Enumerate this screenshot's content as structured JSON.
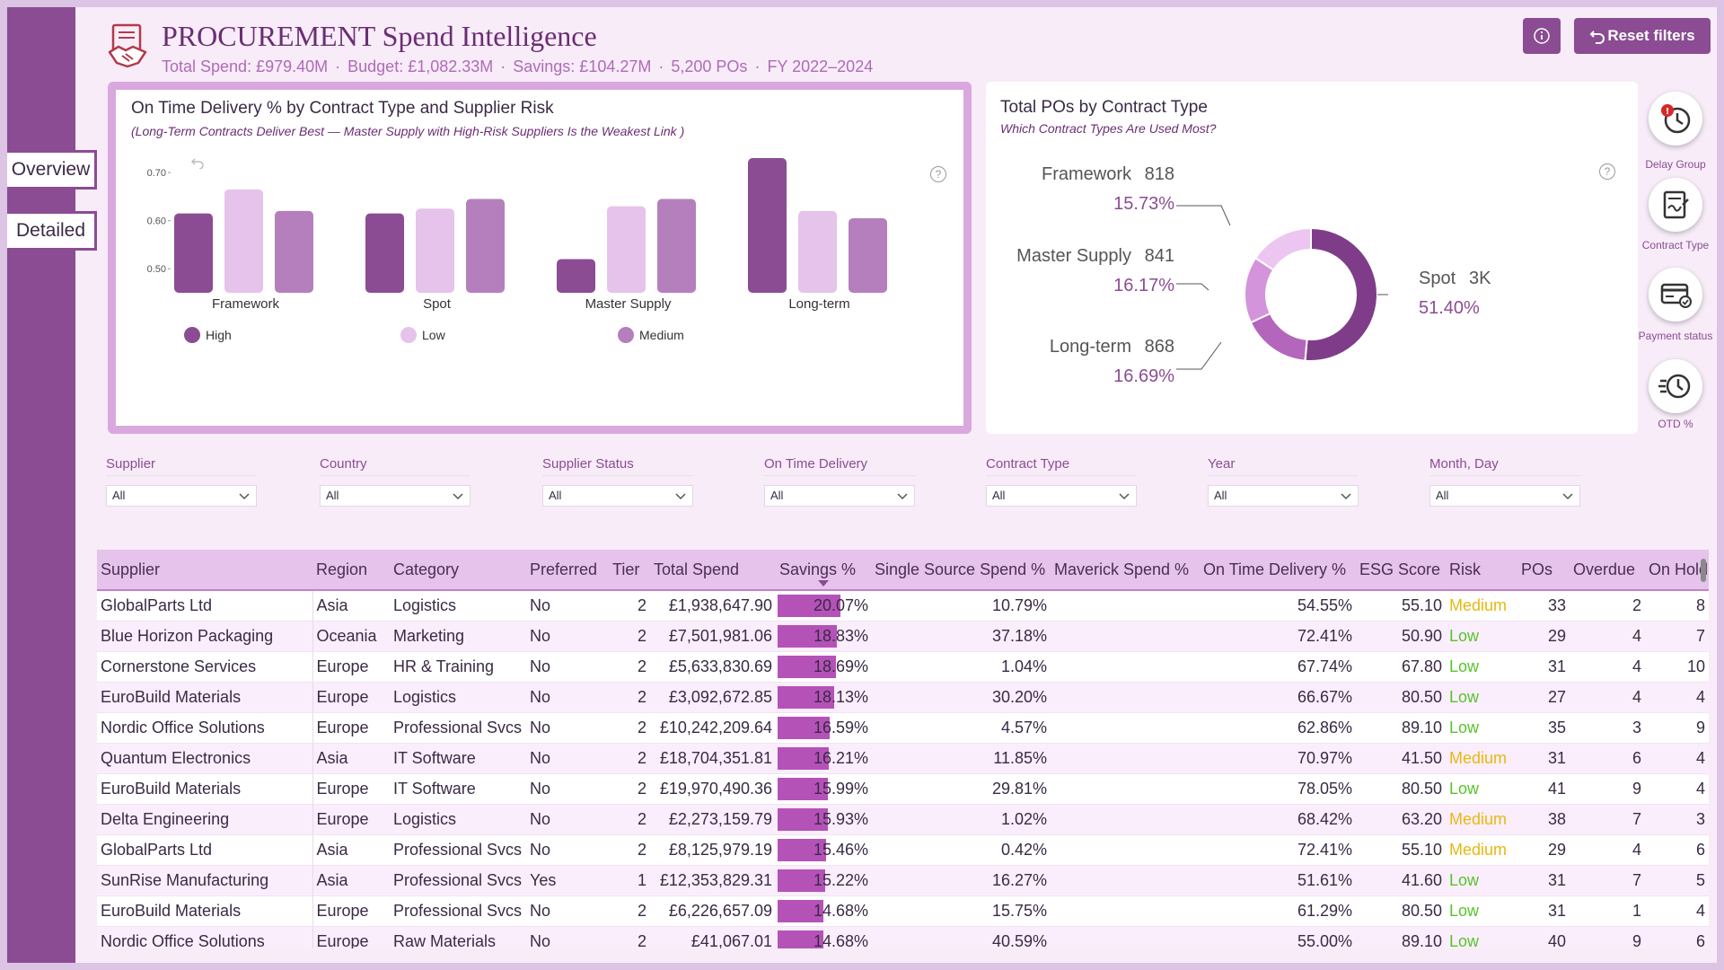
{
  "header": {
    "title": "PROCUREMENT Spend Intelligence",
    "total_spend": "Total Spend: £979.40M",
    "budget": "Budget: £1,082.33M",
    "savings": "Savings: £104.27M",
    "pos": "5,200 POs",
    "fy": "FY 2022–2024",
    "separator": "·",
    "reset_label": "Reset filters"
  },
  "nav": {
    "overview": "Overview",
    "detailed": "Detailed"
  },
  "otd_chart": {
    "title": "On Time Delivery % by Contract Type and Supplier Risk",
    "subtitle": "(Long-Term Contracts Deliver Best — Master Supply with High-Risk Suppliers Is the Weakest Link )",
    "help": "?"
  },
  "donut_chart": {
    "title": "Total POs by Contract Type",
    "subtitle": "Which Contract Types Are Used Most?",
    "help": "?",
    "labels": [
      {
        "name": "Framework",
        "count": "818",
        "pct": "15.73%"
      },
      {
        "name": "Master Supply",
        "count": "841",
        "pct": "16.17%"
      },
      {
        "name": "Long-term",
        "count": "868",
        "pct": "16.69%"
      },
      {
        "name": "Spot",
        "count": "3K",
        "pct": "51.40%"
      }
    ]
  },
  "chart_data": [
    {
      "type": "bar",
      "title": "On Time Delivery % by Contract Type and Supplier Risk",
      "categories": [
        "Framework",
        "Spot",
        "Master Supply",
        "Long-term"
      ],
      "yticks": [
        "0.70",
        "0.60",
        "0.50"
      ],
      "ylim": [
        0.45,
        0.73
      ],
      "legend_position": "bottom",
      "series": [
        {
          "name": "High",
          "color": "#8b4c93",
          "values": [
            0.615,
            0.615,
            0.52,
            0.73
          ]
        },
        {
          "name": "Low",
          "color": "#e6c3eb",
          "values": [
            0.665,
            0.625,
            0.63,
            0.62
          ]
        },
        {
          "name": "Medium",
          "color": "#b57fbd",
          "values": [
            0.62,
            0.645,
            0.645,
            0.605
          ]
        }
      ]
    },
    {
      "type": "pie",
      "title": "Total POs by Contract Type",
      "categories": [
        "Spot",
        "Long-term",
        "Master Supply",
        "Framework"
      ],
      "values": [
        51.4,
        16.69,
        16.17,
        15.73
      ],
      "colors": [
        "#7f3d89",
        "#b466bd",
        "#d394db",
        "#ecc5f0"
      ]
    }
  ],
  "side_icons": [
    {
      "label": "Delay Group",
      "icon": "clock-alert-icon"
    },
    {
      "label": "Contract Type",
      "icon": "contract-icon"
    },
    {
      "label": "Payment status",
      "icon": "payment-card-icon"
    },
    {
      "label": "OTD %",
      "icon": "history-clock-icon"
    }
  ],
  "slicers": [
    {
      "label": "Supplier",
      "value": "All"
    },
    {
      "label": "Country",
      "value": "All"
    },
    {
      "label": "Supplier Status",
      "value": "All"
    },
    {
      "label": "On Time Delivery",
      "value": "All"
    },
    {
      "label": "Contract Type",
      "value": "All"
    },
    {
      "label": "Year",
      "value": "All"
    },
    {
      "label": "Month, Day",
      "value": "All"
    }
  ],
  "table": {
    "columns": [
      "Supplier",
      "Region",
      "Category",
      "Preferred",
      "Tier",
      "Total Spend",
      "Savings %",
      "Single Source Spend %",
      "Maverick Spend %",
      "On Time Delivery %",
      "ESG Score",
      "Risk",
      "POs",
      "Overdue",
      "On Hold"
    ],
    "rows": [
      {
        "supplier": "GlobalParts Ltd",
        "region": "Asia",
        "category": "Logistics",
        "preferred": "No",
        "tier": "2",
        "spend": "£1,938,647.90",
        "savings": "20.07%",
        "savings_value": 20.07,
        "single": "10.79%",
        "maverick": "",
        "otd": "54.55%",
        "esg": "55.10",
        "risk": "Medium",
        "pos": "33",
        "overdue": "2",
        "hold": "8"
      },
      {
        "supplier": "Blue Horizon Packaging",
        "region": "Oceania",
        "category": "Marketing",
        "preferred": "No",
        "tier": "2",
        "spend": "£7,501,981.06",
        "savings": "18.83%",
        "savings_value": 18.83,
        "single": "37.18%",
        "maverick": "",
        "otd": "72.41%",
        "esg": "50.90",
        "risk": "Low",
        "pos": "29",
        "overdue": "4",
        "hold": "7"
      },
      {
        "supplier": "Cornerstone Services",
        "region": "Europe",
        "category": "HR & Training",
        "preferred": "No",
        "tier": "2",
        "spend": "£5,633,830.69",
        "savings": "18.69%",
        "savings_value": 18.69,
        "single": "1.04%",
        "maverick": "",
        "otd": "67.74%",
        "esg": "67.80",
        "risk": "Low",
        "pos": "31",
        "overdue": "4",
        "hold": "10"
      },
      {
        "supplier": "EuroBuild Materials",
        "region": "Europe",
        "category": "Logistics",
        "preferred": "No",
        "tier": "2",
        "spend": "£3,092,672.85",
        "savings": "18.13%",
        "savings_value": 18.13,
        "single": "30.20%",
        "maverick": "",
        "otd": "66.67%",
        "esg": "80.50",
        "risk": "Low",
        "pos": "27",
        "overdue": "4",
        "hold": "4"
      },
      {
        "supplier": "Nordic Office Solutions",
        "region": "Europe",
        "category": "Professional Svcs",
        "preferred": "No",
        "tier": "2",
        "spend": "£10,242,209.64",
        "savings": "16.59%",
        "savings_value": 16.59,
        "single": "4.57%",
        "maverick": "",
        "otd": "62.86%",
        "esg": "89.10",
        "risk": "Low",
        "pos": "35",
        "overdue": "3",
        "hold": "9"
      },
      {
        "supplier": "Quantum Electronics",
        "region": "Asia",
        "category": "IT Software",
        "preferred": "No",
        "tier": "2",
        "spend": "£18,704,351.81",
        "savings": "16.21%",
        "savings_value": 16.21,
        "single": "11.85%",
        "maverick": "",
        "otd": "70.97%",
        "esg": "41.50",
        "risk": "Medium",
        "pos": "31",
        "overdue": "6",
        "hold": "4"
      },
      {
        "supplier": "EuroBuild Materials",
        "region": "Europe",
        "category": "IT Software",
        "preferred": "No",
        "tier": "2",
        "spend": "£19,970,490.36",
        "savings": "15.99%",
        "savings_value": 15.99,
        "single": "29.81%",
        "maverick": "",
        "otd": "78.05%",
        "esg": "80.50",
        "risk": "Low",
        "pos": "41",
        "overdue": "9",
        "hold": "4"
      },
      {
        "supplier": "Delta Engineering",
        "region": "Europe",
        "category": "Logistics",
        "preferred": "No",
        "tier": "2",
        "spend": "£2,273,159.79",
        "savings": "15.93%",
        "savings_value": 15.93,
        "single": "1.02%",
        "maverick": "",
        "otd": "68.42%",
        "esg": "63.20",
        "risk": "Medium",
        "pos": "38",
        "overdue": "7",
        "hold": "3"
      },
      {
        "supplier": "GlobalParts Ltd",
        "region": "Asia",
        "category": "Professional Svcs",
        "preferred": "No",
        "tier": "2",
        "spend": "£8,125,979.19",
        "savings": "15.46%",
        "savings_value": 15.46,
        "single": "0.42%",
        "maverick": "",
        "otd": "72.41%",
        "esg": "55.10",
        "risk": "Medium",
        "pos": "29",
        "overdue": "4",
        "hold": "6"
      },
      {
        "supplier": "SunRise Manufacturing",
        "region": "Asia",
        "category": "Professional Svcs",
        "preferred": "Yes",
        "tier": "1",
        "spend": "£12,353,829.31",
        "savings": "15.22%",
        "savings_value": 15.22,
        "single": "16.27%",
        "maverick": "",
        "otd": "51.61%",
        "esg": "41.60",
        "risk": "Low",
        "pos": "31",
        "overdue": "7",
        "hold": "5"
      },
      {
        "supplier": "EuroBuild Materials",
        "region": "Europe",
        "category": "Professional Svcs",
        "preferred": "No",
        "tier": "2",
        "spend": "£6,226,657.09",
        "savings": "14.68%",
        "savings_value": 14.68,
        "single": "15.75%",
        "maverick": "",
        "otd": "61.29%",
        "esg": "80.50",
        "risk": "Low",
        "pos": "31",
        "overdue": "1",
        "hold": "4"
      },
      {
        "supplier": "Nordic Office Solutions",
        "region": "Europe",
        "category": "Raw Materials",
        "preferred": "No",
        "tier": "2",
        "spend": "£41,067.01",
        "savings": "14.68%",
        "savings_value": 14.68,
        "single": "40.59%",
        "maverick": "",
        "otd": "55.00%",
        "esg": "89.10",
        "risk": "Low",
        "pos": "40",
        "overdue": "9",
        "hold": "6"
      }
    ]
  }
}
